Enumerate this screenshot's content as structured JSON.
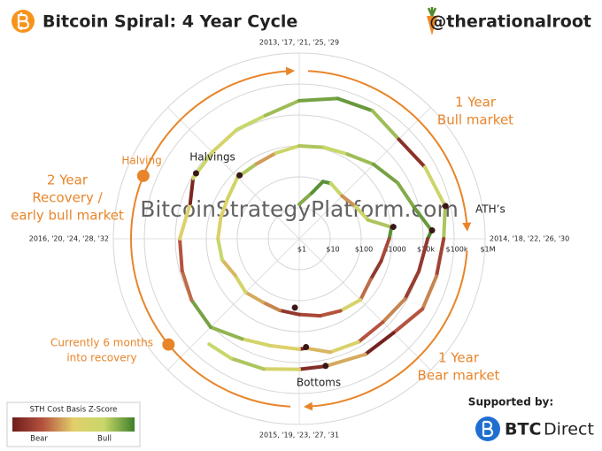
{
  "chart_data": {
    "type": "polar-line",
    "title": "Bitcoin Spiral: 4 Year Cycle",
    "handle": "@therationalroot",
    "watermark": "BitcoinStrategyPlatform.com",
    "angle_labels": [
      "2013, '17, '21, '25, '29",
      "2014, '18, '22, '26, '30",
      "2015, '19, '23, '27, '31",
      "2016, '20, '24, '28, '32"
    ],
    "xlim": [
      2013,
      2017
    ],
    "ylim": [
      1,
      1000000
    ],
    "log_scale": true,
    "yticks": [
      {
        "value": 1,
        "label": "$1"
      },
      {
        "value": 10,
        "label": "$10"
      },
      {
        "value": 100,
        "label": "$100"
      },
      {
        "value": 1000,
        "label": "$1000"
      },
      {
        "value": 10000,
        "label": "$10k"
      },
      {
        "value": 100000,
        "label": "$100k"
      },
      {
        "value": 1000000,
        "label": "$1M"
      }
    ],
    "grid": true,
    "series": [
      {
        "x": [
          2013.0,
          2013.17,
          2013.25,
          2013.33,
          2013.5,
          2013.67,
          2013.83,
          2013.92,
          2014.0,
          2014.17,
          2014.33,
          2014.5,
          2014.67,
          2014.83,
          2015.0,
          2015.17,
          2015.33,
          2015.5,
          2015.67,
          2015.83,
          2016.0,
          2016.17,
          2016.33,
          2016.5,
          2016.67,
          2016.83,
          2017.0,
          2017.17,
          2017.33,
          2017.5,
          2017.67,
          2017.83,
          2017.96,
          2018.0,
          2018.17,
          2018.33,
          2018.5,
          2018.67,
          2018.83,
          2018.96,
          2019.0,
          2019.17,
          2019.33,
          2019.5,
          2019.67,
          2019.83,
          2020.0,
          2020.2,
          2020.33,
          2020.5,
          2020.67,
          2020.83,
          2021.0,
          2021.17,
          2021.33,
          2021.5,
          2021.67,
          2021.86,
          2022.0,
          2022.17,
          2022.33,
          2022.5,
          2022.67,
          2022.87,
          2023.0,
          2023.17,
          2023.33,
          2023.45
        ],
        "values": [
          13,
          34,
          100,
          115,
          90,
          125,
          200,
          1000,
          800,
          550,
          450,
          620,
          480,
          380,
          280,
          250,
          230,
          280,
          240,
          380,
          420,
          420,
          450,
          650,
          610,
          740,
          1000,
          1150,
          1400,
          2500,
          4500,
          7000,
          19000,
          14000,
          10000,
          8500,
          6500,
          7000,
          6300,
          3500,
          3700,
          3800,
          5300,
          11000,
          10000,
          8300,
          7200,
          5000,
          8800,
          9200,
          11500,
          13500,
          29000,
          50000,
          58000,
          35000,
          47000,
          67000,
          46000,
          39000,
          38000,
          20000,
          20000,
          16000,
          16500,
          23000,
          28000,
          30000
        ],
        "zscores": [
          1.5,
          1.8,
          1.8,
          1.0,
          -0.5,
          0.8,
          1.2,
          1.8,
          -1.2,
          -1.5,
          -0.8,
          0.5,
          -1.0,
          -1.2,
          -1.5,
          -0.6,
          -0.3,
          0.6,
          -0.2,
          1.0,
          0.3,
          0.2,
          0.6,
          1.2,
          -0.4,
          0.8,
          1.2,
          1.0,
          1.3,
          1.6,
          1.5,
          1.7,
          1.9,
          -1.5,
          -1.4,
          -0.6,
          -1.0,
          0.3,
          -0.2,
          -1.8,
          0.2,
          0.6,
          1.4,
          1.6,
          -0.8,
          -1.0,
          0.2,
          -1.8,
          0.9,
          0.5,
          1.0,
          1.3,
          1.6,
          1.7,
          1.3,
          -1.6,
          0.8,
          1.2,
          -1.3,
          -0.6,
          -1.0,
          -1.9,
          -0.3,
          -1.7,
          0.5,
          1.2,
          1.0,
          0.6
        ]
      }
    ],
    "color_scale": [
      "#6e1c1c",
      "#b5533f",
      "#e2cf6a",
      "#c8d76a",
      "#3f7f2a"
    ],
    "zlim": [
      -2,
      2
    ],
    "colorbar": {
      "title": "STH Cost Basis Z-Score",
      "low_label": "Bear",
      "high_label": "Bull"
    },
    "events": [
      {
        "name": "Halvings",
        "x": [
          2016.52,
          2020.36
        ],
        "values": [
          650,
          8800
        ]
      },
      {
        "name": "ATH’s",
        "x": [
          2013.92,
          2017.96,
          2021.86
        ],
        "values": [
          1150,
          19700,
          69000
        ]
      },
      {
        "name": "Bottoms",
        "x": [
          2015.04,
          2018.96,
          2022.87
        ],
        "values": [
          170,
          3200,
          15700
        ]
      }
    ],
    "annotations": [
      [
        "1 Year",
        "Bull market"
      ],
      [
        "1 Year",
        "Bear market"
      ],
      [
        "2 Year",
        "Recovery /",
        "early bull market"
      ],
      [
        "Halving"
      ],
      [
        "Currently 6 months",
        "into recovery"
      ]
    ],
    "sponsor": {
      "label": "Supported by:",
      "brand": [
        "BTC",
        "Direct"
      ]
    }
  }
}
